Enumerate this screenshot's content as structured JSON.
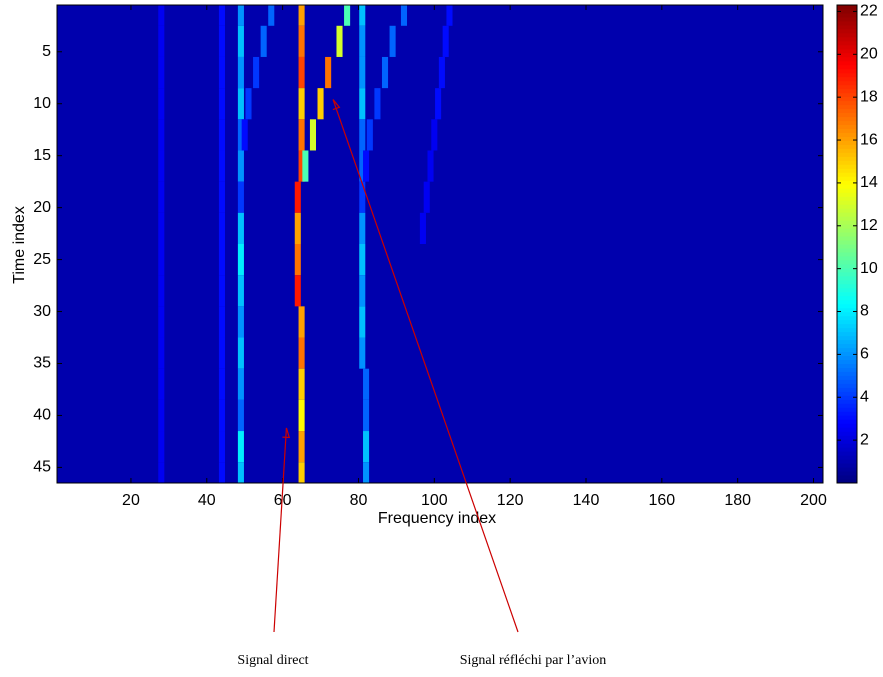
{
  "chart_data": {
    "type": "heatmap",
    "xlabel": "Frequency index",
    "ylabel": "Time index",
    "xlim": [
      0.5,
      202.5
    ],
    "ylim": [
      0.5,
      46.5
    ],
    "y_reversed": true,
    "xticks": [
      20,
      40,
      60,
      80,
      100,
      120,
      140,
      160,
      180,
      200
    ],
    "yticks": [
      5,
      10,
      15,
      20,
      25,
      30,
      35,
      40,
      45
    ],
    "clim": [
      0,
      22.3
    ],
    "cticks": [
      2,
      4,
      6,
      8,
      10,
      12,
      14,
      16,
      18,
      20,
      22
    ],
    "colormap": "jet",
    "background": 1,
    "ridges": [
      {
        "x": [
          28,
          28,
          28,
          28,
          28,
          28,
          28,
          28,
          28,
          28,
          28,
          28,
          28,
          28,
          28,
          28
        ],
        "y": [
          1,
          4,
          7,
          10,
          13,
          16,
          19,
          22,
          25,
          28,
          31,
          34,
          37,
          40,
          43,
          46
        ],
        "values": [
          2.5,
          2.5,
          2.5,
          2.5,
          2.5,
          2.5,
          2.5,
          2.5,
          2.5,
          2.5,
          2.5,
          2.5,
          2.5,
          2.5,
          2.5,
          2.5
        ]
      },
      {
        "x": [
          44,
          44,
          44,
          44,
          44,
          44,
          44,
          44,
          44,
          44,
          44,
          44,
          44,
          44,
          44,
          44
        ],
        "y": [
          1,
          4,
          7,
          10,
          13,
          16,
          19,
          22,
          25,
          28,
          31,
          34,
          37,
          40,
          43,
          46
        ],
        "values": [
          3,
          3,
          3,
          3,
          3,
          3,
          3,
          3,
          3,
          3,
          3,
          3,
          3,
          3,
          3,
          3
        ]
      },
      {
        "x": [
          49,
          49,
          49,
          49,
          49,
          49,
          49,
          49,
          49,
          49,
          49,
          49,
          49,
          49,
          49,
          49
        ],
        "y": [
          1,
          4,
          7,
          10,
          13,
          16,
          19,
          22,
          25,
          28,
          31,
          34,
          37,
          40,
          43,
          46
        ],
        "values": [
          6,
          7,
          6,
          7,
          5,
          6,
          4,
          7,
          8,
          7,
          6,
          7,
          6,
          5,
          8,
          7
        ]
      },
      {
        "x": [
          81,
          81,
          81,
          81,
          81,
          81,
          81,
          81,
          81,
          81,
          81,
          81,
          82,
          82,
          82,
          82
        ],
        "y": [
          1,
          4,
          7,
          10,
          13,
          16,
          19,
          22,
          25,
          28,
          31,
          34,
          37,
          40,
          43,
          46
        ],
        "values": [
          7,
          6,
          6,
          7,
          5,
          5,
          4,
          6,
          7,
          6,
          7,
          6,
          5,
          5,
          7,
          6
        ]
      },
      {
        "x": [
          65,
          65,
          65,
          65,
          65,
          65,
          64,
          64,
          64,
          64,
          65,
          65,
          65,
          65,
          65,
          65
        ],
        "y": [
          1,
          4,
          7,
          10,
          13,
          16,
          19,
          22,
          25,
          28,
          31,
          34,
          37,
          40,
          43,
          46
        ],
        "values": [
          16,
          17,
          18,
          15,
          17,
          18,
          19,
          16,
          17,
          19,
          16,
          17,
          15,
          14,
          16,
          15
        ]
      },
      {
        "x": [
          77,
          75,
          72,
          70,
          68,
          66
        ],
        "y": [
          1,
          4,
          7,
          10,
          13,
          16
        ],
        "values": [
          10,
          13,
          17,
          15,
          13,
          10
        ]
      },
      {
        "x": [
          57,
          55,
          53,
          51,
          50
        ],
        "y": [
          1,
          4,
          7,
          10,
          13
        ],
        "values": [
          5,
          5,
          4,
          4,
          3
        ]
      },
      {
        "x": [
          92,
          89,
          87,
          85,
          83,
          82
        ],
        "y": [
          1,
          4,
          7,
          10,
          13,
          16
        ],
        "values": [
          5,
          5,
          5,
          4,
          4,
          3
        ]
      },
      {
        "x": [
          104,
          103,
          102,
          101,
          100,
          99,
          98,
          97
        ],
        "y": [
          1,
          4,
          7,
          10,
          13,
          16,
          19,
          22
        ],
        "values": [
          3,
          3,
          3,
          3,
          2.5,
          2.5,
          2.5,
          2.5
        ]
      }
    ],
    "annotations": [
      {
        "text": "Signal direct",
        "xy": [
          61,
          41.2
        ]
      },
      {
        "text": "Signal réfléchi par l’avion",
        "xy": [
          73.3,
          9.6
        ]
      }
    ]
  }
}
